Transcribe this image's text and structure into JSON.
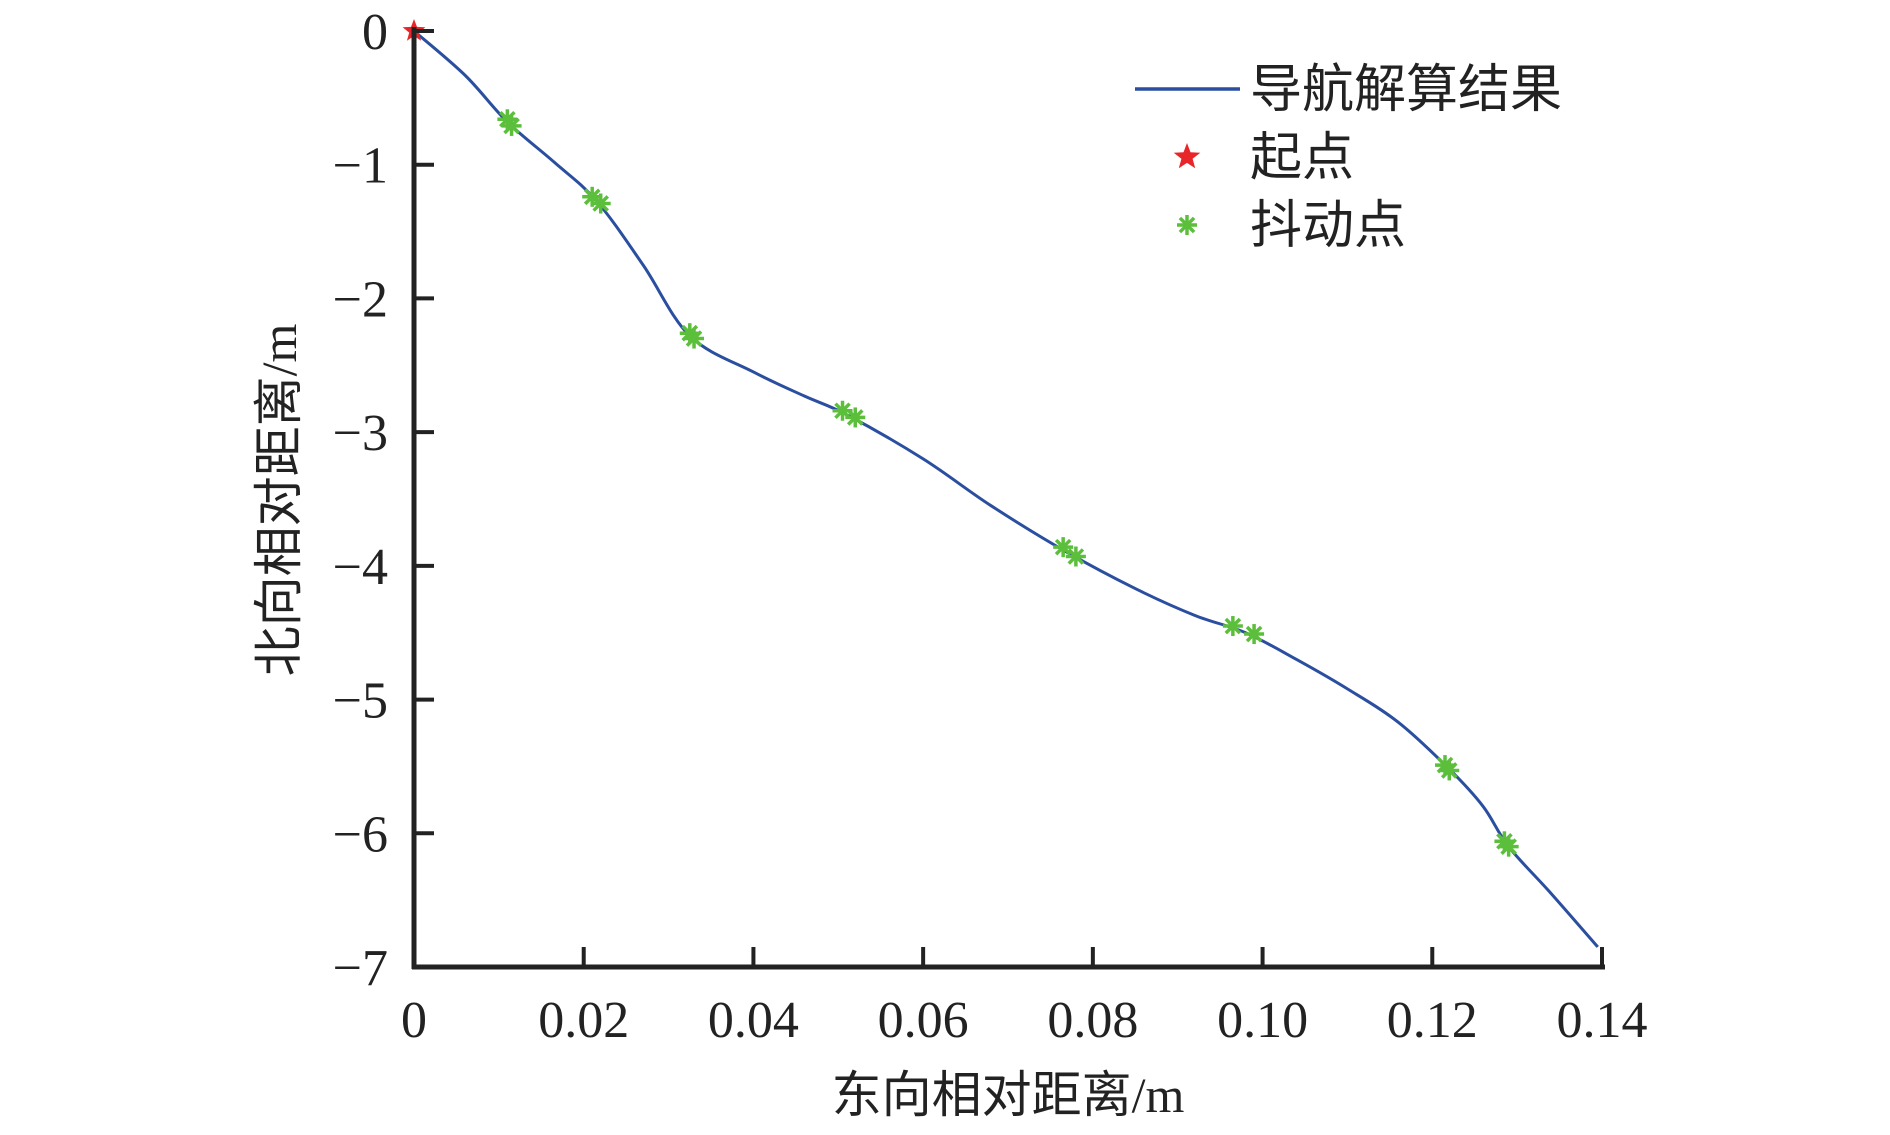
{
  "chart_data": {
    "type": "line",
    "xlabel": "东向相对距离/m",
    "ylabel": "北向相对距离/m",
    "xlim": [
      0,
      0.14
    ],
    "ylim": [
      -7,
      0
    ],
    "xticks": [
      0,
      0.02,
      0.04,
      0.06,
      0.08,
      0.1,
      0.12,
      0.14
    ],
    "xtick_labels": [
      "0",
      "0.02",
      "0.04",
      "0.06",
      "0.08",
      "0.10",
      "0.12",
      "0.14"
    ],
    "yticks": [
      0,
      -1,
      -2,
      -3,
      -4,
      -5,
      -6,
      -7
    ],
    "ytick_labels": [
      "0",
      "−1",
      "−2",
      "−3",
      "−4",
      "−5",
      "−6",
      "−7"
    ],
    "grid": false,
    "legend_position": "top-right",
    "series": [
      {
        "name": "导航解算结果",
        "kind": "line",
        "color": "#2b4fa0",
        "x": [
          0,
          0.006,
          0.011,
          0.0165,
          0.0215,
          0.027,
          0.0325,
          0.04,
          0.046,
          0.051,
          0.06,
          0.068,
          0.077,
          0.085,
          0.092,
          0.098,
          0.104,
          0.11,
          0.116,
          0.122,
          0.126,
          0.129,
          0.134,
          0.1395
        ],
        "y": [
          0,
          -0.33,
          -0.68,
          -0.98,
          -1.27,
          -1.75,
          -2.28,
          -2.55,
          -2.73,
          -2.87,
          -3.2,
          -3.55,
          -3.9,
          -4.17,
          -4.37,
          -4.5,
          -4.7,
          -4.92,
          -5.17,
          -5.52,
          -5.8,
          -6.1,
          -6.45,
          -6.85
        ]
      },
      {
        "name": "起点",
        "kind": "marker",
        "marker": "star",
        "color": "#e8262a",
        "x": [
          0
        ],
        "y": [
          0
        ]
      },
      {
        "name": "抖动点",
        "kind": "marker",
        "marker": "asterisk",
        "color": "#5cbf3c",
        "x": [
          0.011,
          0.0115,
          0.021,
          0.022,
          0.0325,
          0.033,
          0.0505,
          0.052,
          0.0765,
          0.078,
          0.0965,
          0.099,
          0.1215,
          0.122,
          0.1285,
          0.129
        ],
        "y": [
          -0.66,
          -0.71,
          -1.24,
          -1.29,
          -2.26,
          -2.3,
          -2.84,
          -2.89,
          -3.86,
          -3.93,
          -4.45,
          -4.51,
          -5.49,
          -5.53,
          -6.06,
          -6.1
        ]
      }
    ]
  }
}
